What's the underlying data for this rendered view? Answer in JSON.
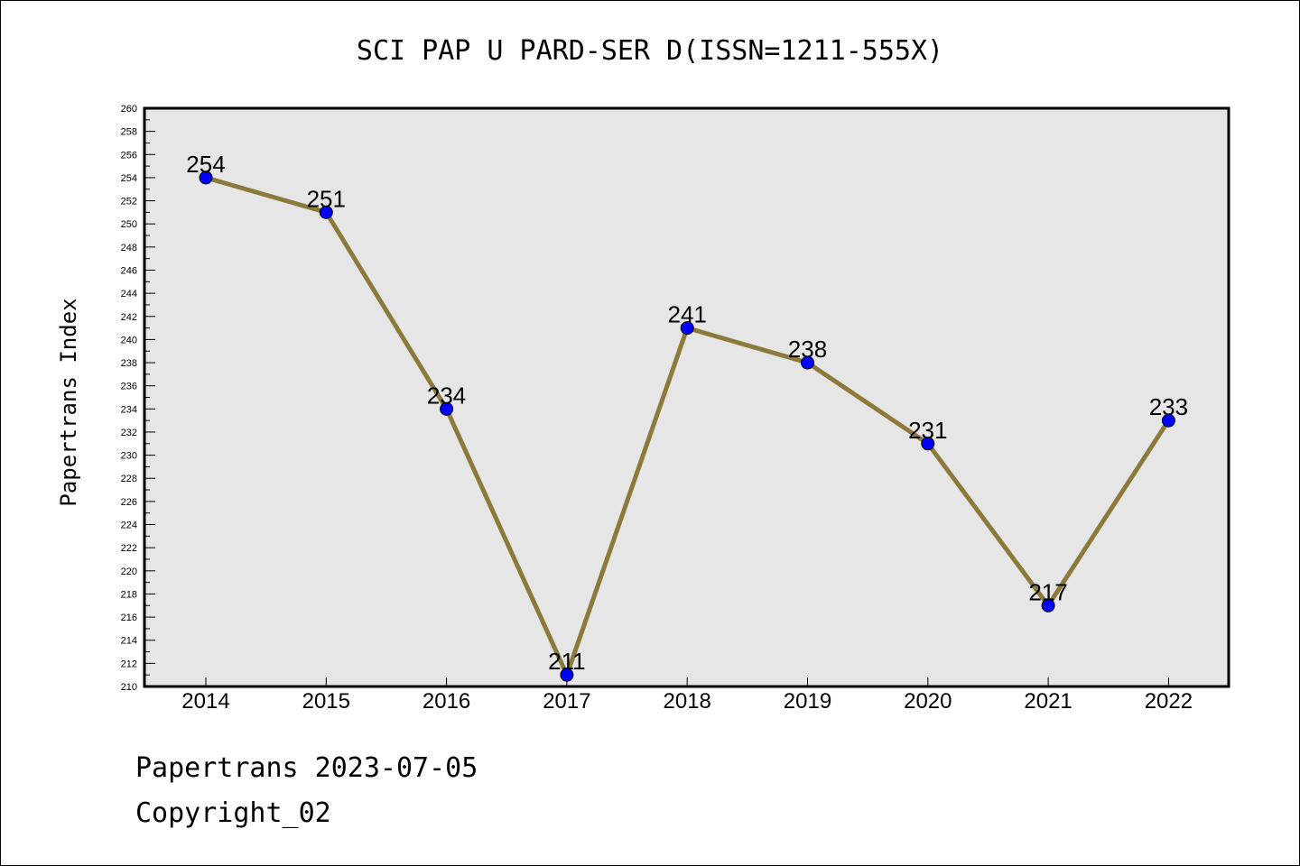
{
  "chart_data": {
    "type": "line",
    "title": "SCI PAP U PARD-SER D(ISSN=1211-555X)",
    "xlabel": "",
    "ylabel": "Papertrans Index",
    "categories": [
      "2014",
      "2015",
      "2016",
      "2017",
      "2018",
      "2019",
      "2020",
      "2021",
      "2022"
    ],
    "series": [
      {
        "values": [
          254,
          251,
          234,
          211,
          241,
          238,
          231,
          217,
          233
        ]
      }
    ],
    "ylim": [
      210,
      260
    ],
    "y_major_step": 2,
    "y_minor_step": 1,
    "data_labels": true,
    "grid": false,
    "colors": {
      "line": "#8b7a3a",
      "marker": "#0000ff",
      "plot_background": "#e6e6e6"
    }
  },
  "footer": {
    "line1": "Papertrans 2023-07-05",
    "line2": "Copyright_02"
  }
}
